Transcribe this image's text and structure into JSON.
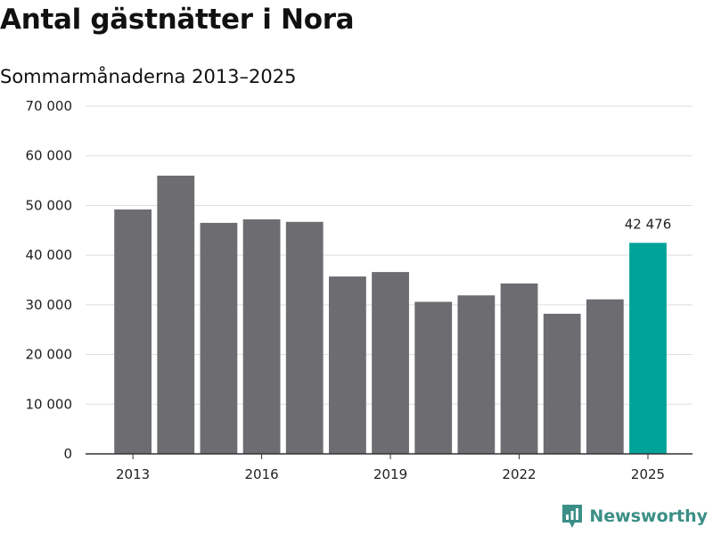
{
  "header": {
    "title": "Antal gästnätter i Nora",
    "subtitle": "Sommarmånaderna 2013–2025"
  },
  "brand": {
    "name": "Newsworthy",
    "icon": "newsworthy-logo-icon",
    "color": "#3b8f86"
  },
  "colors": {
    "bar": "#6d6c71",
    "highlight": "#00a398",
    "grid": "#dddddd",
    "axis": "#333333"
  },
  "chart_data": {
    "type": "bar",
    "title": "Antal gästnätter i Nora",
    "subtitle": "Sommarmånaderna 2013–2025",
    "xlabel": "",
    "ylabel": "",
    "categories": [
      "2013",
      "2014",
      "2015",
      "2016",
      "2017",
      "2018",
      "2019",
      "2020",
      "2021",
      "2022",
      "2023",
      "2024",
      "2025"
    ],
    "values": [
      49200,
      56000,
      46500,
      47200,
      46700,
      35700,
      36600,
      30600,
      31900,
      34300,
      28200,
      31100,
      42476
    ],
    "highlight_index": 12,
    "highlight_label": "42 476",
    "x_tick_labels": [
      "2013",
      "2016",
      "2019",
      "2022",
      "2025"
    ],
    "y_ticks": [
      0,
      10000,
      20000,
      30000,
      40000,
      50000,
      60000,
      70000
    ],
    "y_tick_labels": [
      "0",
      "10 000",
      "20 000",
      "30 000",
      "40 000",
      "50 000",
      "60 000",
      "70 000"
    ],
    "ylim": [
      0,
      70000
    ],
    "grid": true,
    "legend": "none"
  }
}
